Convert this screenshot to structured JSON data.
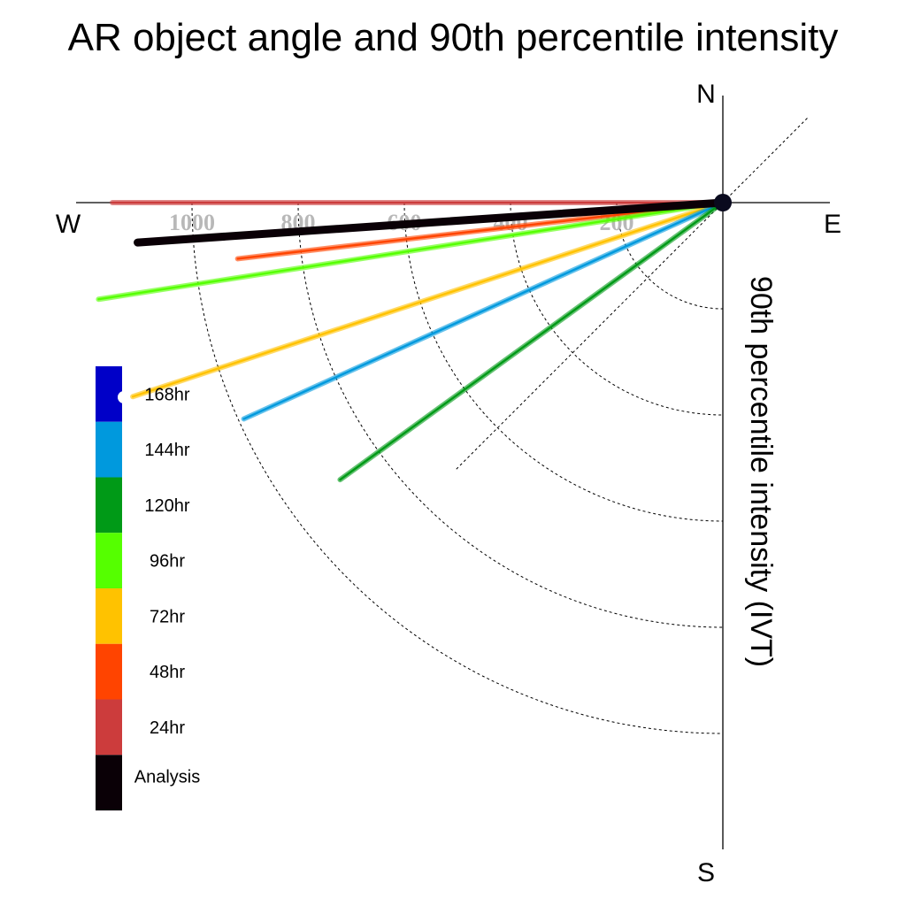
{
  "chart_data": {
    "type": "polar-vector",
    "title": "AR object angle and 90th percentile intensity",
    "axis_label": "90th percentile intensity (IVT)",
    "compass": {
      "n": "N",
      "e": "E",
      "s": "S",
      "w": "W"
    },
    "radial_range": [
      0,
      1250
    ],
    "radial_ticks": [
      200,
      400,
      600,
      800,
      1000
    ],
    "grid": true,
    "legend_position": "lower-left",
    "series": [
      {
        "name": "Analysis",
        "angle_deg": 266.1,
        "intensity": 1105,
        "color": "#0a0006",
        "weight": "heavy"
      },
      {
        "name": "24hr",
        "angle_deg": 270.0,
        "intensity": 1150,
        "color": "#cc3c3c",
        "weight": "normal"
      },
      {
        "name": "48hr",
        "angle_deg": 263.4,
        "intensity": 920,
        "color": "#ff4400",
        "weight": "normal"
      },
      {
        "name": "72hr",
        "angle_deg": 251.8,
        "intensity": 1170,
        "color": "#ffc200",
        "weight": "normal"
      },
      {
        "name": "96hr",
        "angle_deg": 261.2,
        "intensity": 1190,
        "color": "#55ff00",
        "weight": "normal"
      },
      {
        "name": "120hr",
        "angle_deg": 234.1,
        "intensity": 890,
        "color": "#009a17",
        "weight": "normal"
      },
      {
        "name": "144hr",
        "angle_deg": 245.7,
        "intensity": 990,
        "color": "#0099dd",
        "weight": "normal"
      },
      {
        "name": "168hr",
        "angle_deg": 270.0,
        "intensity": 0,
        "color": "#0000c8",
        "weight": "normal"
      }
    ],
    "legend_order": [
      "168hr",
      "144hr",
      "120hr",
      "96hr",
      "72hr",
      "48hr",
      "24hr",
      "Analysis"
    ]
  }
}
